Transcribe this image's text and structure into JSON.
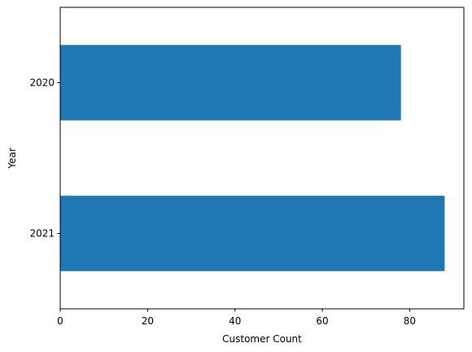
{
  "chart_data": {
    "type": "bar",
    "orientation": "horizontal",
    "categories": [
      "2020",
      "2021"
    ],
    "values": [
      78,
      88
    ],
    "title": "",
    "xlabel": "Customer Count",
    "ylabel": "Year",
    "xlim": [
      0,
      92.4
    ],
    "xticks": [
      "0",
      "20",
      "40",
      "60",
      "80"
    ],
    "grid": false,
    "legend": "none",
    "bar_color": "#1f77b4"
  }
}
